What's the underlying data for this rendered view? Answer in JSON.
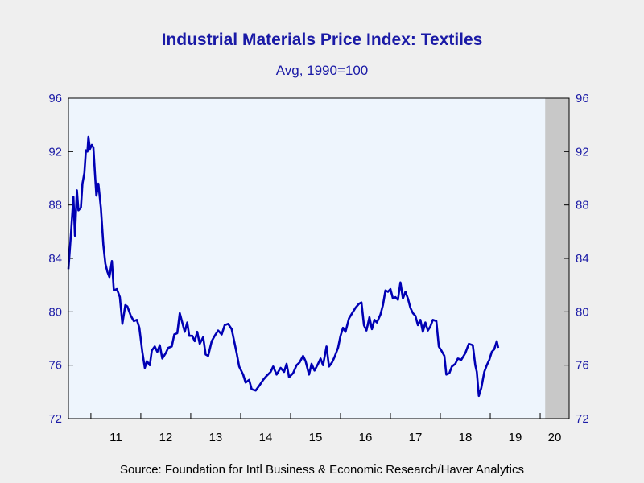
{
  "chart_data": {
    "type": "line",
    "title": "Industrial Materials Price Index: Textiles",
    "subtitle": "Avg, 1990=100",
    "source": "Source:  Foundation for Intl Business & Economic Research/Haver Analytics",
    "ylim": [
      72,
      96
    ],
    "yticks": [
      72,
      76,
      80,
      84,
      88,
      92,
      96
    ],
    "ytick_labels": [
      "72",
      "76",
      "80",
      "84",
      "88",
      "92",
      "96"
    ],
    "xlim": [
      2010.55,
      2020.58
    ],
    "xtick_labels": [
      "11",
      "12",
      "13",
      "14",
      "15",
      "16",
      "17",
      "18",
      "19",
      "20"
    ],
    "recession_shading": {
      "start": 2020.1,
      "end": 2020.58
    },
    "grid": false,
    "legend": "none",
    "colors": {
      "line": "#0000b4",
      "shade": "#c8c8c8",
      "plot_bg": "#eef5fd",
      "text": "#1a1aa6"
    },
    "series": [
      {
        "values": [
          [
            2010.55,
            83.2
          ],
          [
            2010.6,
            85.8
          ],
          [
            2010.65,
            88.6
          ],
          [
            2010.68,
            85.7
          ],
          [
            2010.72,
            89.1
          ],
          [
            2010.75,
            87.6
          ],
          [
            2010.8,
            87.8
          ],
          [
            2010.83,
            89.6
          ],
          [
            2010.87,
            90.4
          ],
          [
            2010.9,
            92.1
          ],
          [
            2010.93,
            92.0
          ],
          [
            2010.95,
            93.1
          ],
          [
            2010.98,
            92.2
          ],
          [
            2011.02,
            92.5
          ],
          [
            2011.05,
            92.3
          ],
          [
            2011.08,
            90.4
          ],
          [
            2011.11,
            88.7
          ],
          [
            2011.15,
            89.6
          ],
          [
            2011.2,
            87.8
          ],
          [
            2011.25,
            85.0
          ],
          [
            2011.29,
            83.6
          ],
          [
            2011.33,
            83.0
          ],
          [
            2011.37,
            82.6
          ],
          [
            2011.42,
            83.8
          ],
          [
            2011.46,
            81.6
          ],
          [
            2011.52,
            81.7
          ],
          [
            2011.58,
            81.1
          ],
          [
            2011.63,
            79.1
          ],
          [
            2011.69,
            80.5
          ],
          [
            2011.73,
            80.4
          ],
          [
            2011.8,
            79.7
          ],
          [
            2011.86,
            79.3
          ],
          [
            2011.92,
            79.4
          ],
          [
            2011.97,
            78.8
          ],
          [
            2012.03,
            77.0
          ],
          [
            2012.08,
            75.8
          ],
          [
            2012.12,
            76.3
          ],
          [
            2012.18,
            76.0
          ],
          [
            2012.22,
            77.1
          ],
          [
            2012.28,
            77.4
          ],
          [
            2012.33,
            77.0
          ],
          [
            2012.38,
            77.5
          ],
          [
            2012.43,
            76.5
          ],
          [
            2012.5,
            76.9
          ],
          [
            2012.55,
            77.3
          ],
          [
            2012.62,
            77.4
          ],
          [
            2012.67,
            78.3
          ],
          [
            2012.73,
            78.4
          ],
          [
            2012.78,
            79.9
          ],
          [
            2012.83,
            79.2
          ],
          [
            2012.88,
            78.5
          ],
          [
            2012.93,
            79.2
          ],
          [
            2012.97,
            78.2
          ],
          [
            2013.03,
            78.2
          ],
          [
            2013.08,
            77.8
          ],
          [
            2013.13,
            78.5
          ],
          [
            2013.18,
            77.6
          ],
          [
            2013.25,
            78.1
          ],
          [
            2013.3,
            76.8
          ],
          [
            2013.35,
            76.7
          ],
          [
            2013.42,
            77.8
          ],
          [
            2013.48,
            78.2
          ],
          [
            2013.55,
            78.6
          ],
          [
            2013.62,
            78.3
          ],
          [
            2013.68,
            79.0
          ],
          [
            2013.75,
            79.1
          ],
          [
            2013.82,
            78.7
          ],
          [
            2013.87,
            77.8
          ],
          [
            2013.92,
            76.9
          ],
          [
            2013.97,
            75.9
          ],
          [
            2014.05,
            75.3
          ],
          [
            2014.1,
            74.7
          ],
          [
            2014.17,
            74.9
          ],
          [
            2014.22,
            74.2
          ],
          [
            2014.3,
            74.1
          ],
          [
            2014.38,
            74.5
          ],
          [
            2014.45,
            74.9
          ],
          [
            2014.52,
            75.2
          ],
          [
            2014.6,
            75.5
          ],
          [
            2014.65,
            75.9
          ],
          [
            2014.72,
            75.3
          ],
          [
            2014.8,
            75.8
          ],
          [
            2014.87,
            75.5
          ],
          [
            2014.92,
            76.1
          ],
          [
            2014.97,
            75.1
          ],
          [
            2015.05,
            75.4
          ],
          [
            2015.12,
            76.0
          ],
          [
            2015.18,
            76.2
          ],
          [
            2015.25,
            76.7
          ],
          [
            2015.3,
            76.3
          ],
          [
            2015.37,
            75.3
          ],
          [
            2015.42,
            76.1
          ],
          [
            2015.48,
            75.6
          ],
          [
            2015.55,
            76.1
          ],
          [
            2015.6,
            76.5
          ],
          [
            2015.65,
            76.0
          ],
          [
            2015.72,
            77.4
          ],
          [
            2015.77,
            75.9
          ],
          [
            2015.83,
            76.2
          ],
          [
            2015.88,
            76.6
          ],
          [
            2015.95,
            77.3
          ],
          [
            2016.0,
            78.2
          ],
          [
            2016.05,
            78.8
          ],
          [
            2016.1,
            78.5
          ],
          [
            2016.17,
            79.5
          ],
          [
            2016.25,
            80.0
          ],
          [
            2016.3,
            80.3
          ],
          [
            2016.37,
            80.6
          ],
          [
            2016.42,
            80.7
          ],
          [
            2016.47,
            79.0
          ],
          [
            2016.52,
            78.6
          ],
          [
            2016.58,
            79.6
          ],
          [
            2016.63,
            78.7
          ],
          [
            2016.68,
            79.4
          ],
          [
            2016.73,
            79.2
          ],
          [
            2016.8,
            79.8
          ],
          [
            2016.85,
            80.5
          ],
          [
            2016.9,
            81.6
          ],
          [
            2016.95,
            81.5
          ],
          [
            2017.0,
            81.7
          ],
          [
            2017.05,
            81.0
          ],
          [
            2017.1,
            81.1
          ],
          [
            2017.15,
            80.9
          ],
          [
            2017.2,
            82.2
          ],
          [
            2017.25,
            81.0
          ],
          [
            2017.3,
            81.5
          ],
          [
            2017.35,
            81.0
          ],
          [
            2017.4,
            80.3
          ],
          [
            2017.45,
            79.9
          ],
          [
            2017.5,
            79.7
          ],
          [
            2017.55,
            79.0
          ],
          [
            2017.6,
            79.4
          ],
          [
            2017.65,
            78.5
          ],
          [
            2017.7,
            79.2
          ],
          [
            2017.75,
            78.6
          ],
          [
            2017.8,
            78.9
          ],
          [
            2017.85,
            79.4
          ],
          [
            2017.92,
            79.3
          ],
          [
            2017.97,
            77.4
          ],
          [
            2018.02,
            77.1
          ],
          [
            2018.08,
            76.7
          ],
          [
            2018.12,
            75.3
          ],
          [
            2018.18,
            75.4
          ],
          [
            2018.23,
            75.9
          ],
          [
            2018.3,
            76.1
          ],
          [
            2018.35,
            76.5
          ],
          [
            2018.42,
            76.4
          ],
          [
            2018.5,
            76.9
          ],
          [
            2018.57,
            77.6
          ],
          [
            2018.65,
            77.5
          ],
          [
            2018.7,
            76.0
          ],
          [
            2018.73,
            75.5
          ],
          [
            2018.77,
            73.7
          ],
          [
            2018.82,
            74.3
          ],
          [
            2018.88,
            75.5
          ],
          [
            2018.93,
            76.0
          ],
          [
            2018.98,
            76.4
          ],
          [
            2019.03,
            77.0
          ],
          [
            2019.08,
            77.2
          ],
          [
            2019.13,
            77.8
          ],
          [
            2019.16,
            77.3
          ]
        ]
      }
    ]
  }
}
